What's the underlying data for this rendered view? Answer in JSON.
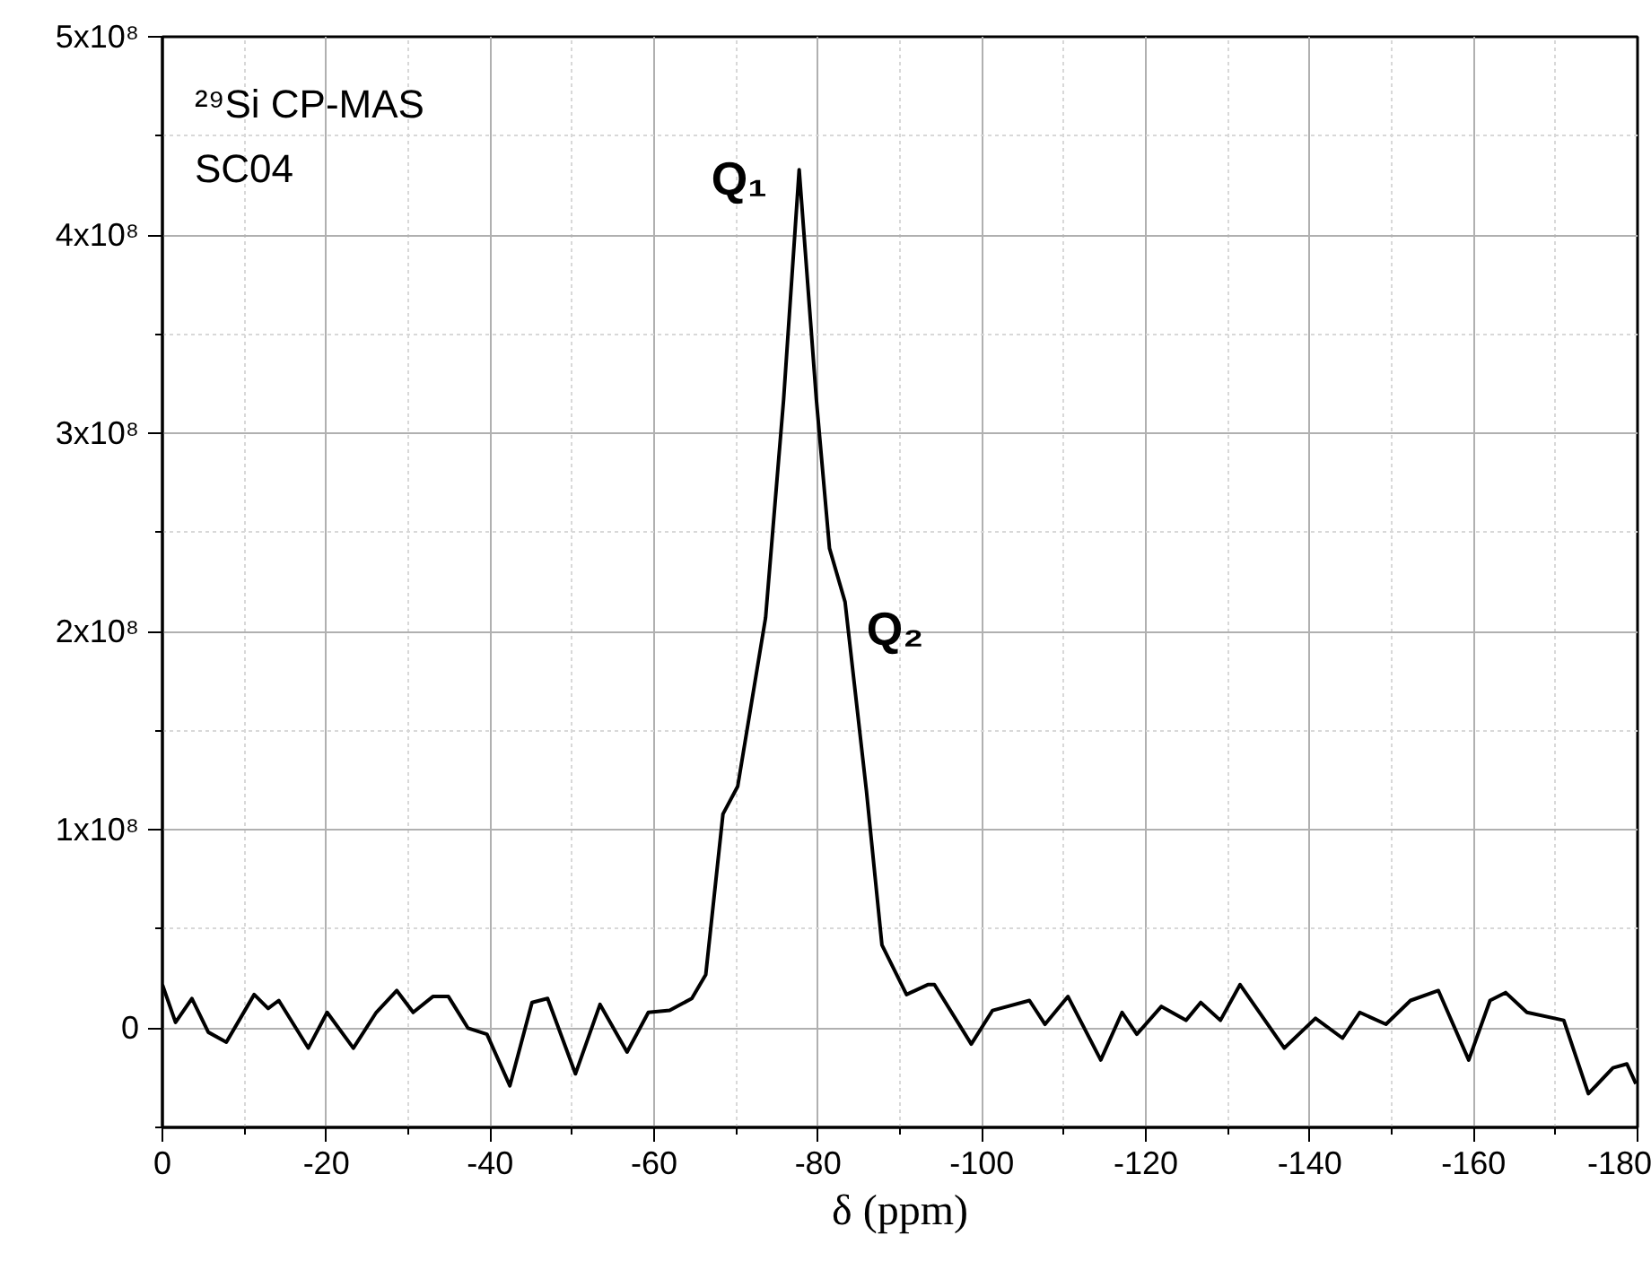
{
  "chart_data": {
    "type": "line",
    "xlabel": "δ (ppm)",
    "x": [
      0,
      -1.6,
      -3.6,
      -5.6,
      -7.8,
      -11.2,
      -12.9,
      -14.2,
      -17.8,
      -20.1,
      -23.3,
      -26.1,
      -28.6,
      -30.6,
      -33.0,
      -34.9,
      -37.3,
      -39.6,
      -42.4,
      -45.1,
      -47.0,
      -50.4,
      -53.4,
      -56.7,
      -59.3,
      -61.9,
      -64.6,
      -66.3,
      -68.4,
      -70.2,
      -73.6,
      -75.8,
      -77.7,
      -79.8,
      -81.4,
      -83.3,
      -85.9,
      -87.8,
      -90.8,
      -93.4,
      -94.2,
      -98.7,
      -101.3,
      -105.8,
      -107.7,
      -110.5,
      -114.5,
      -117.1,
      -118.9,
      -121.9,
      -124.9,
      -126.7,
      -129.1,
      -131.5,
      -136.9,
      -140.7,
      -144.0,
      -146.1,
      -149.3,
      -152.3,
      -155.7,
      -159.4,
      -162.0,
      -163.9,
      -166.5,
      -171.0,
      -174.0,
      -177.0,
      -178.7,
      -179.8
    ],
    "series": [
      {
        "color": "#000000",
        "values": [
          22000000.0,
          3000000.0,
          15000000.0,
          -2000000.0,
          -7000000.0,
          17000000.0,
          10000000.0,
          14000000.0,
          -10000000.0,
          8000000.0,
          -10000000.0,
          8000000.0,
          19000000.0,
          8000000.0,
          16000000.0,
          16000000.0,
          0,
          -3000000.0,
          -29000000.0,
          13000000.0,
          15000000.0,
          -23000000.0,
          12000000.0,
          -12000000.0,
          8000000.0,
          9000000.0,
          15000000.0,
          27000000.0,
          108000000.0,
          122000000.0,
          207000000.0,
          317000000.0,
          433000000.0,
          317000000.0,
          242000000.0,
          215000000.0,
          120000000.0,
          42000000.0,
          17000000.0,
          22000000.0,
          22000000.0,
          -8000000.0,
          9000000.0,
          14000000.0,
          2000000.0,
          16000000.0,
          -16000000.0,
          8000000.0,
          -3000000.0,
          11000000.0,
          4000000.0,
          13000000.0,
          4000000.0,
          22000000.0,
          -10000000.0,
          5000000.0,
          -5000000.0,
          8000000.0,
          2000000.0,
          14000000.0,
          19000000.0,
          -16000000.0,
          14000000.0,
          18000000.0,
          8000000.0,
          4000000.0,
          -33000000.0,
          -20000000.0,
          -18000000.0,
          -28000000.0
        ]
      }
    ],
    "xlim": [
      0,
      -180
    ],
    "xticks": [
      0,
      -20,
      -40,
      -60,
      -80,
      -100,
      -120,
      -140,
      -160,
      -180
    ],
    "ylim": [
      -50000000.0,
      500000000.0
    ],
    "yticks": [
      {
        "value": 0,
        "label": "0"
      },
      {
        "value": 100000000.0,
        "label": "1x10⁸"
      },
      {
        "value": 200000000.0,
        "label": "2x10⁸"
      },
      {
        "value": 300000000.0,
        "label": "3x10⁸"
      },
      {
        "value": 400000000.0,
        "label": "4x10⁸"
      },
      {
        "value": 500000000.0,
        "label": "5x10⁸"
      }
    ],
    "grid": true,
    "marker": "none",
    "line_style": "solid",
    "annotations": [
      "²⁹Si CP-MAS",
      "SC04",
      {
        "text": "Q₁",
        "x": -77.7,
        "y": 433000000.0
      },
      {
        "text": "Q₂",
        "x": -83.3,
        "y": 215000000.0
      }
    ]
  }
}
